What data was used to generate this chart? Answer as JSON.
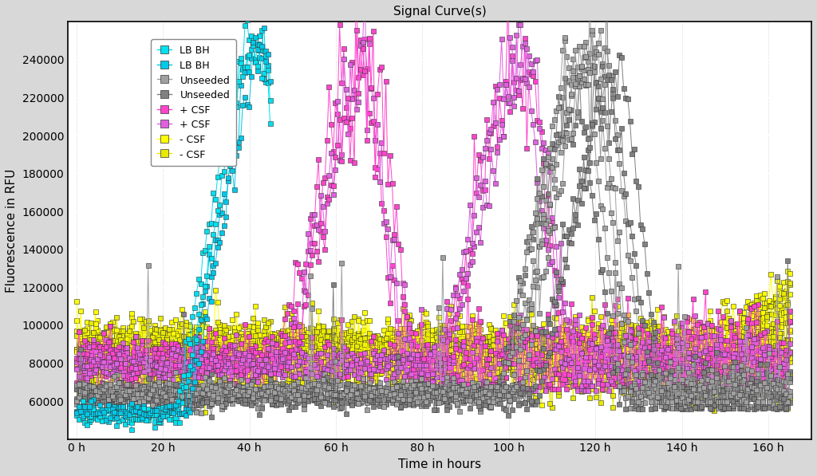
{
  "title": "Signal Curve(s)",
  "xlabel": "Time in hours",
  "ylabel": "Fluorescence in RFU",
  "xlim": [
    -2,
    170
  ],
  "ylim": [
    40000,
    260000
  ],
  "xticks": [
    0,
    20,
    40,
    60,
    80,
    100,
    120,
    140,
    160
  ],
  "yticks": [
    60000,
    80000,
    100000,
    120000,
    140000,
    160000,
    180000,
    200000,
    220000,
    240000
  ],
  "plot_bg": "#ffffff",
  "fig_bg": "#d8d8d8",
  "colors": {
    "LB_BH_1": "#00e0f0",
    "LB_BH_2": "#00c8e8",
    "Unseeded_1": "#a0a0a0",
    "Unseeded_2": "#808080",
    "pos_CSF_1": "#ff44cc",
    "pos_CSF_2": "#e060e0",
    "neg_CSF_1": "#ffff00",
    "neg_CSF_2": "#e8e800"
  },
  "seed": 123
}
